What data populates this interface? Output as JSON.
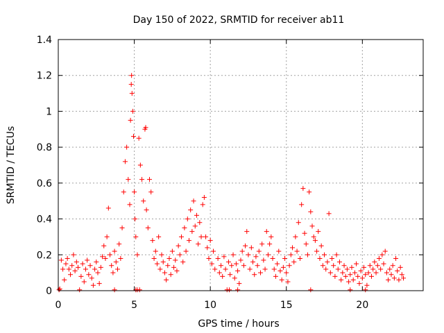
{
  "chart_data": {
    "type": "scatter",
    "title": "Day 150 of 2022, SRMTID for receiver ab11",
    "xlabel": "GPS time / hours",
    "ylabel": "SRMTID / TECUs",
    "xlim": [
      0,
      24
    ],
    "ylim": [
      0,
      1.4
    ],
    "xticks": [
      "0",
      "5",
      "10",
      "15",
      "20"
    ],
    "yticks": [
      "0",
      "0.2",
      "0.4",
      "0.6",
      "0.8",
      "1",
      "1.2",
      "1.4"
    ],
    "grid": true,
    "marker": "+",
    "color": "#ff0000",
    "series": [
      {
        "name": "SRMTID",
        "points": [
          [
            0.1,
            0.01
          ],
          [
            0.2,
            0.17
          ],
          [
            0.3,
            0.12
          ],
          [
            0.4,
            0.06
          ],
          [
            0.5,
            0.15
          ],
          [
            0.6,
            0.18
          ],
          [
            0.7,
            0.12
          ],
          [
            0.8,
            0.09
          ],
          [
            0.9,
            0.14
          ],
          [
            1.0,
            0.2
          ],
          [
            1.1,
            0.11
          ],
          [
            1.2,
            0.16
          ],
          [
            1.3,
            0.13
          ],
          [
            1.5,
            0.08
          ],
          [
            1.6,
            0.15
          ],
          [
            1.7,
            0.05
          ],
          [
            1.8,
            0.12
          ],
          [
            1.9,
            0.17
          ],
          [
            2.0,
            0.09
          ],
          [
            2.1,
            0.14
          ],
          [
            2.2,
            0.07
          ],
          [
            2.3,
            0.03
          ],
          [
            2.4,
            0.12
          ],
          [
            2.5,
            0.16
          ],
          [
            2.6,
            0.1
          ],
          [
            2.7,
            0.04
          ],
          [
            2.8,
            0.13
          ],
          [
            2.9,
            0.19
          ],
          [
            3.0,
            0.25
          ],
          [
            3.1,
            0.18
          ],
          [
            3.2,
            0.3
          ],
          [
            3.3,
            0.46
          ],
          [
            3.4,
            0.2
          ],
          [
            3.5,
            0.14
          ],
          [
            3.6,
            0.1
          ],
          [
            3.7,
            0.22
          ],
          [
            3.8,
            0.16
          ],
          [
            3.9,
            0.12
          ],
          [
            4.0,
            0.26
          ],
          [
            4.1,
            0.18
          ],
          [
            4.2,
            0.35
          ],
          [
            4.3,
            0.55
          ],
          [
            4.4,
            0.72
          ],
          [
            4.5,
            0.8
          ],
          [
            4.6,
            0.62
          ],
          [
            4.7,
            0.48
          ],
          [
            4.75,
            0.95
          ],
          [
            4.8,
            1.15
          ],
          [
            4.82,
            1.2
          ],
          [
            4.85,
            1.1
          ],
          [
            4.9,
            1.0
          ],
          [
            4.95,
            0.86
          ],
          [
            5.0,
            0.55
          ],
          [
            5.05,
            0.4
          ],
          [
            5.1,
            0.3
          ],
          [
            5.2,
            0.2
          ],
          [
            5.3,
            0.85
          ],
          [
            5.4,
            0.7
          ],
          [
            5.5,
            0.62
          ],
          [
            5.6,
            0.5
          ],
          [
            5.7,
            0.9
          ],
          [
            5.75,
            0.91
          ],
          [
            5.8,
            0.45
          ],
          [
            5.9,
            0.35
          ],
          [
            6.0,
            0.62
          ],
          [
            6.1,
            0.55
          ],
          [
            6.2,
            0.28
          ],
          [
            6.3,
            0.18
          ],
          [
            6.4,
            0.22
          ],
          [
            6.5,
            0.15
          ],
          [
            6.6,
            0.3
          ],
          [
            6.7,
            0.12
          ],
          [
            6.8,
            0.2
          ],
          [
            6.9,
            0.16
          ],
          [
            7.0,
            0.1
          ],
          [
            7.1,
            0.06
          ],
          [
            7.2,
            0.14
          ],
          [
            7.3,
            0.18
          ],
          [
            7.4,
            0.09
          ],
          [
            7.5,
            0.22
          ],
          [
            7.6,
            0.13
          ],
          [
            7.7,
            0.17
          ],
          [
            7.8,
            0.11
          ],
          [
            7.9,
            0.25
          ],
          [
            8.0,
            0.2
          ],
          [
            8.1,
            0.3
          ],
          [
            8.2,
            0.16
          ],
          [
            8.3,
            0.35
          ],
          [
            8.4,
            0.22
          ],
          [
            8.5,
            0.4
          ],
          [
            8.6,
            0.28
          ],
          [
            8.7,
            0.45
          ],
          [
            8.8,
            0.33
          ],
          [
            8.9,
            0.5
          ],
          [
            9.0,
            0.36
          ],
          [
            9.1,
            0.42
          ],
          [
            9.2,
            0.26
          ],
          [
            9.3,
            0.38
          ],
          [
            9.4,
            0.3
          ],
          [
            9.5,
            0.48
          ],
          [
            9.6,
            0.52
          ],
          [
            9.7,
            0.3
          ],
          [
            9.8,
            0.24
          ],
          [
            9.9,
            0.18
          ],
          [
            10.0,
            0.28
          ],
          [
            10.1,
            0.15
          ],
          [
            10.2,
            0.22
          ],
          [
            10.3,
            0.12
          ],
          [
            10.5,
            0.18
          ],
          [
            10.6,
            0.1
          ],
          [
            10.7,
            0.14
          ],
          [
            10.8,
            0.08
          ],
          [
            10.9,
            0.19
          ],
          [
            11.0,
            0.12
          ],
          [
            11.2,
            0.16
          ],
          [
            11.3,
            0.09
          ],
          [
            11.4,
            0.14
          ],
          [
            11.5,
            0.2
          ],
          [
            11.6,
            0.07
          ],
          [
            11.7,
            0.15
          ],
          [
            11.8,
            0.11
          ],
          [
            11.9,
            0.04
          ],
          [
            12.0,
            0.17
          ],
          [
            12.1,
            0.22
          ],
          [
            12.2,
            0.14
          ],
          [
            12.3,
            0.25
          ],
          [
            12.4,
            0.33
          ],
          [
            12.5,
            0.2
          ],
          [
            12.6,
            0.12
          ],
          [
            12.7,
            0.24
          ],
          [
            12.8,
            0.16
          ],
          [
            12.9,
            0.09
          ],
          [
            13.0,
            0.19
          ],
          [
            13.1,
            0.14
          ],
          [
            13.2,
            0.22
          ],
          [
            13.3,
            0.1
          ],
          [
            13.4,
            0.26
          ],
          [
            13.5,
            0.17
          ],
          [
            13.6,
            0.12
          ],
          [
            13.7,
            0.33
          ],
          [
            13.8,
            0.2
          ],
          [
            13.9,
            0.26
          ],
          [
            14.0,
            0.3
          ],
          [
            14.1,
            0.18
          ],
          [
            14.2,
            0.12
          ],
          [
            14.3,
            0.08
          ],
          [
            14.4,
            0.15
          ],
          [
            14.5,
            0.22
          ],
          [
            14.6,
            0.11
          ],
          [
            14.7,
            0.06
          ],
          [
            14.8,
            0.13
          ],
          [
            14.9,
            0.18
          ],
          [
            15.0,
            0.1
          ],
          [
            15.1,
            0.05
          ],
          [
            15.2,
            0.14
          ],
          [
            15.3,
            0.2
          ],
          [
            15.4,
            0.24
          ],
          [
            15.5,
            0.16
          ],
          [
            15.6,
            0.3
          ],
          [
            15.7,
            0.22
          ],
          [
            15.8,
            0.38
          ],
          [
            15.9,
            0.18
          ],
          [
            16.0,
            0.48
          ],
          [
            16.1,
            0.57
          ],
          [
            16.2,
            0.32
          ],
          [
            16.3,
            0.26
          ],
          [
            16.4,
            0.2
          ],
          [
            16.5,
            0.55
          ],
          [
            16.6,
            0.44
          ],
          [
            16.7,
            0.36
          ],
          [
            16.8,
            0.3
          ],
          [
            16.9,
            0.28
          ],
          [
            17.0,
            0.22
          ],
          [
            17.1,
            0.33
          ],
          [
            17.2,
            0.18
          ],
          [
            17.3,
            0.25
          ],
          [
            17.4,
            0.14
          ],
          [
            17.5,
            0.2
          ],
          [
            17.6,
            0.12
          ],
          [
            17.7,
            0.16
          ],
          [
            17.8,
            0.43
          ],
          [
            17.9,
            0.1
          ],
          [
            18.0,
            0.18
          ],
          [
            18.1,
            0.14
          ],
          [
            18.2,
            0.08
          ],
          [
            18.3,
            0.2
          ],
          [
            18.4,
            0.12
          ],
          [
            18.5,
            0.16
          ],
          [
            18.6,
            0.06
          ],
          [
            18.7,
            0.1
          ],
          [
            18.8,
            0.14
          ],
          [
            18.9,
            0.08
          ],
          [
            19.0,
            0.12
          ],
          [
            19.1,
            0.05
          ],
          [
            19.2,
            0.09
          ],
          [
            19.3,
            0.13
          ],
          [
            19.4,
            0.06
          ],
          [
            19.5,
            0.1
          ],
          [
            19.6,
            0.15
          ],
          [
            19.7,
            0.08
          ],
          [
            19.8,
            0.04
          ],
          [
            19.9,
            0.11
          ],
          [
            20.0,
            0.07
          ],
          [
            20.1,
            0.13
          ],
          [
            20.2,
            0.09
          ],
          [
            20.3,
            0.03
          ],
          [
            20.4,
            0.1
          ],
          [
            20.5,
            0.14
          ],
          [
            20.6,
            0.08
          ],
          [
            20.7,
            0.12
          ],
          [
            20.8,
            0.16
          ],
          [
            20.9,
            0.1
          ],
          [
            21.0,
            0.14
          ],
          [
            21.1,
            0.18
          ],
          [
            21.2,
            0.12
          ],
          [
            21.3,
            0.2
          ],
          [
            21.4,
            0.15
          ],
          [
            21.5,
            0.22
          ],
          [
            21.6,
            0.1
          ],
          [
            21.7,
            0.06
          ],
          [
            21.8,
            0.12
          ],
          [
            21.9,
            0.09
          ],
          [
            22.0,
            0.14
          ],
          [
            22.1,
            0.07
          ],
          [
            22.2,
            0.18
          ],
          [
            22.3,
            0.11
          ],
          [
            22.4,
            0.06
          ],
          [
            22.5,
            0.13
          ],
          [
            22.6,
            0.09
          ],
          [
            22.7,
            0.07
          ],
          [
            0.05,
            0.005
          ],
          [
            1.4,
            0.005
          ],
          [
            3.7,
            0.005
          ],
          [
            5.1,
            0.005
          ],
          [
            5.2,
            0.005
          ],
          [
            5.35,
            0.005
          ],
          [
            11.1,
            0.005
          ],
          [
            11.25,
            0.005
          ],
          [
            11.8,
            0.005
          ],
          [
            16.6,
            0.005
          ],
          [
            19.2,
            0.005
          ],
          [
            20.2,
            0.005
          ]
        ]
      }
    ]
  }
}
